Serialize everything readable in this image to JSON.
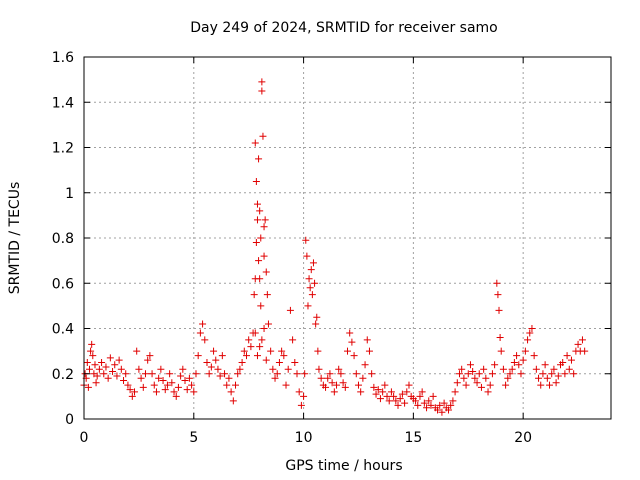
{
  "chart_data": {
    "type": "scatter",
    "title": "Day 249 of 2024, SRMTID for receiver samo",
    "xlabel": "GPS time / hours",
    "ylabel": "SRMTID / TECUs",
    "xlim": [
      0,
      24
    ],
    "ylim": [
      0,
      1.6
    ],
    "x_ticks": [
      0,
      5,
      10,
      15,
      20
    ],
    "x_tick_labels": [
      "0",
      "5",
      "10",
      "15",
      "20"
    ],
    "y_ticks": [
      0,
      0.2,
      0.4,
      0.6,
      0.8,
      1,
      1.2,
      1.4,
      1.6
    ],
    "y_tick_labels": [
      "0",
      "0.2",
      "0.4",
      "0.6",
      "0.8",
      "1",
      "1.2",
      "1.4",
      "1.6"
    ],
    "grid": true,
    "marker": "plus",
    "marker_color": "#e00000",
    "series": [
      {
        "name": "SRMTID",
        "x": [
          0.0,
          0.05,
          0.1,
          0.15,
          0.2,
          0.25,
          0.3,
          0.35,
          0.4,
          0.45,
          0.5,
          0.55,
          0.6,
          0.7,
          0.8,
          0.9,
          1.0,
          1.1,
          1.2,
          1.3,
          1.4,
          1.5,
          1.6,
          1.7,
          1.8,
          1.9,
          2.0,
          2.1,
          2.2,
          2.3,
          2.4,
          2.5,
          2.6,
          2.7,
          2.8,
          2.9,
          3.0,
          3.1,
          3.2,
          3.3,
          3.4,
          3.5,
          3.6,
          3.7,
          3.8,
          3.9,
          4.0,
          4.1,
          4.2,
          4.3,
          4.4,
          4.5,
          4.6,
          4.7,
          4.8,
          4.9,
          5.0,
          5.1,
          5.2,
          5.3,
          5.4,
          5.5,
          5.6,
          5.7,
          5.8,
          5.9,
          6.0,
          6.1,
          6.2,
          6.3,
          6.4,
          6.5,
          6.6,
          6.7,
          6.8,
          6.9,
          7.0,
          7.1,
          7.2,
          7.3,
          7.4,
          7.5,
          7.6,
          7.7,
          7.75,
          7.8,
          7.8,
          7.85,
          7.85,
          7.9,
          7.9,
          7.95,
          7.95,
          8.0,
          8.0,
          8.05,
          8.05,
          8.1,
          8.1,
          8.15,
          8.2,
          8.2,
          8.25,
          8.3,
          8.35,
          8.4,
          8.5,
          7.8,
          7.9,
          8.0,
          8.1,
          8.2,
          8.3,
          8.6,
          8.7,
          8.8,
          8.9,
          9.0,
          9.1,
          9.2,
          9.3,
          9.4,
          9.5,
          9.6,
          9.7,
          9.8,
          9.9,
          10.0,
          10.05,
          10.1,
          10.15,
          10.2,
          10.25,
          10.3,
          10.35,
          10.4,
          10.45,
          10.5,
          10.55,
          10.6,
          10.65,
          10.7,
          10.8,
          10.9,
          11.0,
          11.1,
          11.2,
          11.3,
          11.4,
          11.5,
          11.6,
          11.7,
          11.8,
          11.9,
          12.0,
          12.1,
          12.2,
          12.3,
          12.4,
          12.5,
          12.6,
          12.7,
          12.8,
          12.9,
          13.0,
          13.1,
          13.2,
          13.3,
          13.4,
          13.5,
          13.6,
          13.7,
          13.8,
          13.9,
          14.0,
          14.1,
          14.2,
          14.3,
          14.4,
          14.5,
          14.6,
          14.7,
          14.8,
          14.9,
          15.0,
          15.1,
          15.2,
          15.3,
          15.4,
          15.5,
          15.6,
          15.7,
          15.8,
          15.9,
          16.0,
          16.1,
          16.2,
          16.3,
          16.4,
          16.5,
          16.6,
          16.7,
          16.8,
          16.9,
          17.0,
          17.1,
          17.2,
          17.3,
          17.4,
          17.5,
          17.6,
          17.7,
          17.8,
          17.9,
          18.0,
          18.1,
          18.2,
          18.3,
          18.4,
          18.5,
          18.6,
          18.7,
          18.8,
          18.85,
          18.9,
          18.95,
          19.0,
          19.1,
          19.2,
          19.3,
          19.4,
          19.5,
          19.6,
          19.7,
          19.8,
          19.9,
          20.0,
          20.1,
          20.2,
          20.3,
          20.4,
          20.5,
          20.6,
          20.7,
          20.8,
          20.9,
          21.0,
          21.1,
          21.2,
          21.3,
          21.4,
          21.5,
          21.6,
          21.7,
          21.8,
          21.9,
          22.0,
          22.1,
          22.2,
          22.3,
          22.4,
          22.5,
          22.6,
          22.7,
          22.8
        ],
        "y": [
          0.15,
          0.2,
          0.18,
          0.25,
          0.14,
          0.22,
          0.3,
          0.33,
          0.28,
          0.2,
          0.24,
          0.16,
          0.19,
          0.22,
          0.25,
          0.2,
          0.23,
          0.18,
          0.27,
          0.21,
          0.24,
          0.19,
          0.26,
          0.22,
          0.17,
          0.2,
          0.15,
          0.13,
          0.1,
          0.12,
          0.3,
          0.22,
          0.18,
          0.14,
          0.2,
          0.26,
          0.28,
          0.2,
          0.15,
          0.12,
          0.18,
          0.22,
          0.17,
          0.13,
          0.15,
          0.2,
          0.16,
          0.12,
          0.1,
          0.14,
          0.19,
          0.22,
          0.17,
          0.13,
          0.18,
          0.15,
          0.12,
          0.2,
          0.28,
          0.38,
          0.42,
          0.35,
          0.25,
          0.2,
          0.23,
          0.3,
          0.26,
          0.22,
          0.19,
          0.28,
          0.2,
          0.15,
          0.18,
          0.12,
          0.08,
          0.15,
          0.2,
          0.22,
          0.25,
          0.3,
          0.28,
          0.35,
          0.32,
          0.38,
          0.55,
          0.62,
          1.22,
          0.78,
          1.05,
          0.88,
          0.95,
          0.7,
          1.15,
          0.62,
          0.92,
          0.5,
          0.8,
          1.49,
          1.45,
          1.25,
          0.85,
          0.72,
          0.88,
          0.65,
          0.55,
          0.42,
          0.3,
          0.38,
          0.28,
          0.32,
          0.35,
          0.4,
          0.26,
          0.22,
          0.18,
          0.2,
          0.25,
          0.3,
          0.28,
          0.15,
          0.22,
          0.48,
          0.35,
          0.25,
          0.2,
          0.12,
          0.06,
          0.1,
          0.2,
          0.79,
          0.72,
          0.5,
          0.62,
          0.58,
          0.66,
          0.55,
          0.69,
          0.6,
          0.42,
          0.45,
          0.3,
          0.22,
          0.18,
          0.15,
          0.14,
          0.18,
          0.2,
          0.16,
          0.12,
          0.15,
          0.22,
          0.2,
          0.16,
          0.14,
          0.3,
          0.38,
          0.34,
          0.28,
          0.2,
          0.15,
          0.12,
          0.18,
          0.24,
          0.35,
          0.3,
          0.2,
          0.14,
          0.11,
          0.13,
          0.09,
          0.12,
          0.15,
          0.1,
          0.08,
          0.12,
          0.1,
          0.08,
          0.06,
          0.09,
          0.11,
          0.07,
          0.12,
          0.15,
          0.1,
          0.09,
          0.08,
          0.06,
          0.1,
          0.12,
          0.07,
          0.05,
          0.08,
          0.06,
          0.1,
          0.05,
          0.04,
          0.06,
          0.03,
          0.07,
          0.05,
          0.04,
          0.06,
          0.08,
          0.12,
          0.16,
          0.2,
          0.22,
          0.18,
          0.15,
          0.2,
          0.24,
          0.21,
          0.18,
          0.16,
          0.2,
          0.14,
          0.22,
          0.18,
          0.12,
          0.15,
          0.2,
          0.24,
          0.6,
          0.55,
          0.48,
          0.36,
          0.3,
          0.22,
          0.15,
          0.18,
          0.2,
          0.22,
          0.25,
          0.28,
          0.24,
          0.2,
          0.26,
          0.3,
          0.35,
          0.38,
          0.4,
          0.28,
          0.22,
          0.18,
          0.15,
          0.2,
          0.24,
          0.18,
          0.15,
          0.2,
          0.22,
          0.16,
          0.19,
          0.24,
          0.25,
          0.2,
          0.28,
          0.22,
          0.26,
          0.2,
          0.3,
          0.33,
          0.3,
          0.35,
          0.3
        ]
      }
    ]
  }
}
